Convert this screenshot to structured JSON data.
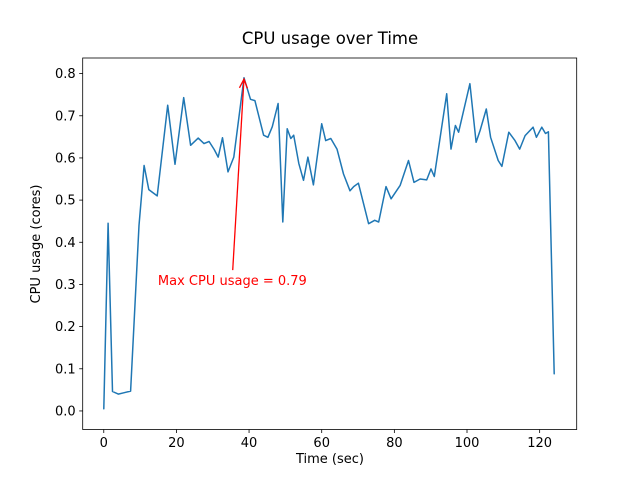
{
  "chart_data": {
    "type": "line",
    "title": "CPU usage over Time",
    "xlabel": "Time (sec)",
    "ylabel": "CPU usage (cores)",
    "xlim": [
      -5.8,
      130.2
    ],
    "ylim": [
      -0.044,
      0.837
    ],
    "xticks": {
      "values": [
        0,
        20,
        40,
        60,
        80,
        100,
        120
      ],
      "labels": [
        "0",
        "20",
        "40",
        "60",
        "80",
        "100",
        "120"
      ]
    },
    "yticks": {
      "values": [
        0.0,
        0.1,
        0.2,
        0.3,
        0.4,
        0.5,
        0.6,
        0.7,
        0.8
      ],
      "labels": [
        "0.0",
        "0.1",
        "0.2",
        "0.3",
        "0.4",
        "0.5",
        "0.6",
        "0.7",
        "0.8"
      ]
    },
    "grid": false,
    "legend": null,
    "line_color": "#1f77b4",
    "line_width": 1.5,
    "spine_color": "#000000",
    "max_value": 0.79,
    "points": [
      [
        0.0,
        0.005
      ],
      [
        1.2,
        0.445
      ],
      [
        2.4,
        0.046
      ],
      [
        4.0,
        0.04
      ],
      [
        5.5,
        0.043
      ],
      [
        7.4,
        0.047
      ],
      [
        9.7,
        0.44
      ],
      [
        11.1,
        0.582
      ],
      [
        12.4,
        0.525
      ],
      [
        14.7,
        0.51
      ],
      [
        17.6,
        0.725
      ],
      [
        19.6,
        0.585
      ],
      [
        22.0,
        0.743
      ],
      [
        23.9,
        0.63
      ],
      [
        26.0,
        0.647
      ],
      [
        27.6,
        0.634
      ],
      [
        29.0,
        0.639
      ],
      [
        30.4,
        0.62
      ],
      [
        31.5,
        0.602
      ],
      [
        32.7,
        0.648
      ],
      [
        34.2,
        0.567
      ],
      [
        35.8,
        0.602
      ],
      [
        38.6,
        0.79
      ],
      [
        40.4,
        0.739
      ],
      [
        41.6,
        0.736
      ],
      [
        44.0,
        0.654
      ],
      [
        45.2,
        0.649
      ],
      [
        46.4,
        0.674
      ],
      [
        48.0,
        0.729
      ],
      [
        49.3,
        0.448
      ],
      [
        50.5,
        0.669
      ],
      [
        51.5,
        0.646
      ],
      [
        52.3,
        0.654
      ],
      [
        53.7,
        0.587
      ],
      [
        55.0,
        0.547
      ],
      [
        56.2,
        0.602
      ],
      [
        57.7,
        0.536
      ],
      [
        60.0,
        0.681
      ],
      [
        61.1,
        0.641
      ],
      [
        62.5,
        0.646
      ],
      [
        64.2,
        0.621
      ],
      [
        66.0,
        0.562
      ],
      [
        67.8,
        0.522
      ],
      [
        68.8,
        0.532
      ],
      [
        70.1,
        0.54
      ],
      [
        72.9,
        0.444
      ],
      [
        74.6,
        0.452
      ],
      [
        75.7,
        0.448
      ],
      [
        77.7,
        0.532
      ],
      [
        79.1,
        0.503
      ],
      [
        81.6,
        0.535
      ],
      [
        83.9,
        0.594
      ],
      [
        85.4,
        0.542
      ],
      [
        87.1,
        0.55
      ],
      [
        88.9,
        0.548
      ],
      [
        90.1,
        0.574
      ],
      [
        91.0,
        0.556
      ],
      [
        94.4,
        0.752
      ],
      [
        95.6,
        0.621
      ],
      [
        96.8,
        0.677
      ],
      [
        97.7,
        0.661
      ],
      [
        100.8,
        0.776
      ],
      [
        102.5,
        0.637
      ],
      [
        103.6,
        0.665
      ],
      [
        105.3,
        0.716
      ],
      [
        106.5,
        0.649
      ],
      [
        108.6,
        0.594
      ],
      [
        109.6,
        0.58
      ],
      [
        111.5,
        0.661
      ],
      [
        113.2,
        0.641
      ],
      [
        114.5,
        0.621
      ],
      [
        116.0,
        0.653
      ],
      [
        118.2,
        0.673
      ],
      [
        119.1,
        0.649
      ],
      [
        120.6,
        0.673
      ],
      [
        121.6,
        0.658
      ],
      [
        122.4,
        0.662
      ],
      [
        124.0,
        0.088
      ]
    ],
    "annotation": {
      "text": "Max CPU usage = 0.79",
      "color": "#ff0000",
      "arrow_tip": [
        38.6,
        0.787
      ],
      "arrow_tail": [
        35.5,
        0.334
      ],
      "text_center": [
        35.4,
        0.305
      ]
    }
  }
}
